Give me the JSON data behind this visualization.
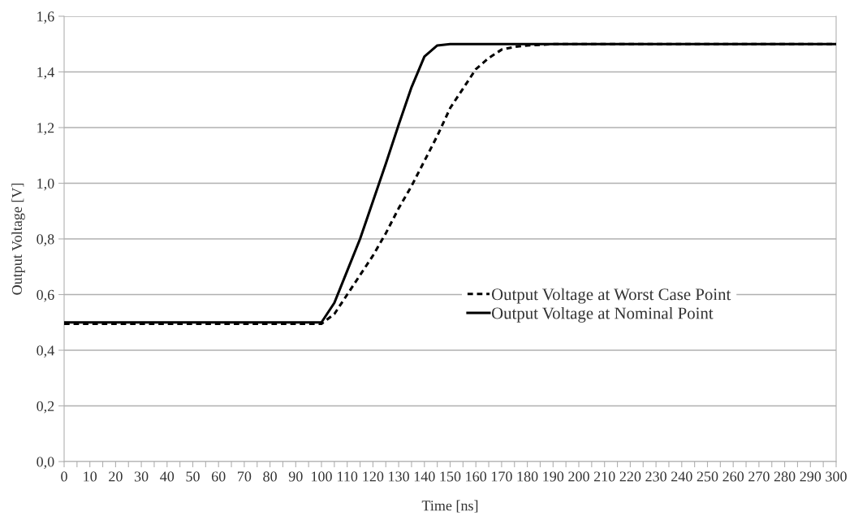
{
  "chart_data": {
    "type": "line",
    "xlabel": "Time [ns]",
    "ylabel": "Output Voltage [V]",
    "series": [
      {
        "name": "Output Voltage at Worst Case Point",
        "color": "#000000",
        "line_style": "dashed",
        "x": [
          0,
          100,
          105,
          110,
          115,
          120,
          125,
          130,
          135,
          140,
          145,
          150,
          155,
          160,
          165,
          170,
          175,
          180,
          190,
          300
        ],
        "values": [
          0.495,
          0.495,
          0.53,
          0.6,
          0.67,
          0.74,
          0.82,
          0.91,
          0.99,
          1.08,
          1.17,
          1.27,
          1.34,
          1.41,
          1.45,
          1.48,
          1.49,
          1.495,
          1.5,
          1.5
        ]
      },
      {
        "name": "Output Voltage at Nominal Point",
        "color": "#000000",
        "line_style": "solid",
        "x": [
          0,
          100,
          105,
          110,
          115,
          120,
          125,
          130,
          135,
          140,
          145,
          150,
          300
        ],
        "values": [
          0.5,
          0.5,
          0.57,
          0.685,
          0.8,
          0.935,
          1.07,
          1.21,
          1.345,
          1.455,
          1.495,
          1.5,
          1.5
        ]
      }
    ],
    "xlim": [
      0,
      300
    ],
    "ylim": [
      0,
      1.6
    ],
    "xticks": [
      0,
      {
        "value": 5,
        "label": null
      },
      10,
      {
        "value": 15,
        "label": null
      },
      20,
      {
        "value": 25,
        "label": null
      },
      30,
      {
        "value": 35,
        "label": null
      },
      40,
      {
        "value": 45,
        "label": null
      },
      50,
      {
        "value": 55,
        "label": null
      },
      60,
      {
        "value": 65,
        "label": null
      },
      70,
      {
        "value": 75,
        "label": null
      },
      80,
      {
        "value": 85,
        "label": null
      },
      90,
      {
        "value": 95,
        "label": null
      },
      100,
      {
        "value": 105,
        "label": null
      },
      110,
      {
        "value": 115,
        "label": null
      },
      120,
      {
        "value": 125,
        "label": null
      },
      130,
      {
        "value": 135,
        "label": null
      },
      140,
      {
        "value": 145,
        "label": null
      },
      150,
      {
        "value": 155,
        "label": null
      },
      160,
      {
        "value": 165,
        "label": null
      },
      170,
      {
        "value": 175,
        "label": null
      },
      180,
      {
        "value": 185,
        "label": null
      },
      190,
      {
        "value": 195,
        "label": null
      },
      200,
      {
        "value": 205,
        "label": null
      },
      210,
      {
        "value": 215,
        "label": null
      },
      220,
      {
        "value": 225,
        "label": null
      },
      230,
      {
        "value": 235,
        "label": null
      },
      240,
      {
        "value": 245,
        "label": null
      },
      250,
      {
        "value": 255,
        "label": null
      },
      260,
      {
        "value": 265,
        "label": null
      },
      270,
      {
        "value": 275,
        "label": null
      },
      280,
      {
        "value": 285,
        "label": null
      },
      290,
      {
        "value": 295,
        "label": null
      },
      300
    ],
    "yticks": [
      {
        "value": 0,
        "label": "0,0"
      },
      {
        "value": 0.2,
        "label": "0,2"
      },
      {
        "value": 0.4,
        "label": "0,4"
      },
      {
        "value": 0.6,
        "label": "0,6"
      },
      {
        "value": 0.8,
        "label": "0,8"
      },
      {
        "value": 1.0,
        "label": "1,0"
      },
      {
        "value": 1.2,
        "label": "1,2"
      },
      {
        "value": 1.4,
        "label": "1,4"
      },
      {
        "value": 1.6,
        "label": "1,6"
      }
    ],
    "grid": "y",
    "legend": "center right",
    "marker": "none"
  }
}
